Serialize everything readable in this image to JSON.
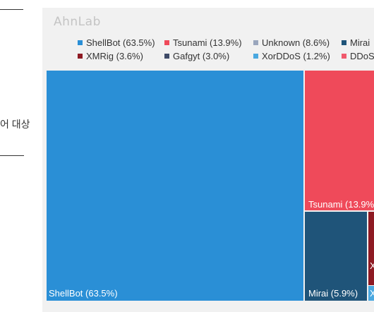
{
  "side_text": "어 대상",
  "brand": "AhnLab",
  "legend": [
    {
      "label": "ShellBot (63.5%)",
      "color": "#2a8fd6"
    },
    {
      "label": "Tsunami (13.9%)",
      "color": "#ef4a5a"
    },
    {
      "label": "Unknown (8.6%)",
      "color": "#9aa6bd"
    },
    {
      "label": "Mirai",
      "color": "#1f5479"
    },
    {
      "label": "XMRig (3.6%)",
      "color": "#8e1a23"
    },
    {
      "label": "Gafgyt (3.0%)",
      "color": "#3e4a67"
    },
    {
      "label": "XorDDoS (1.2%)",
      "color": "#4aa8e0"
    },
    {
      "label": "DDoS",
      "color": "#f0596c"
    }
  ],
  "chart_data": {
    "type": "treemap",
    "series": [
      {
        "name": "ShellBot",
        "value": 63.5,
        "label": "ShellBot (63.5%)",
        "color": "#2a8fd6"
      },
      {
        "name": "Tsunami",
        "value": 13.9,
        "label": "Tsunami (13.9%)",
        "color": "#ef4a5a"
      },
      {
        "name": "Mirai",
        "value": 5.9,
        "label": "Mirai (5.9%)",
        "color": "#1f5479"
      },
      {
        "name": "XMRig",
        "value": 3.6,
        "label": "X",
        "color": "#8e1a23"
      },
      {
        "name": "XorDDoS",
        "value": 1.2,
        "label": "X",
        "color": "#4aa8e0"
      }
    ]
  }
}
